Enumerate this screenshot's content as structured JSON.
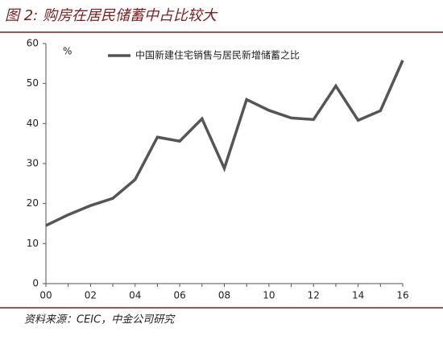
{
  "chart_data": {
    "type": "line",
    "title": "图 2: 购房在居民储蓄中占比较大",
    "unit_label": "%",
    "source": "资料来源：CEIC，中金公司研究",
    "categories": [
      "00",
      null,
      "02",
      null,
      "04",
      null,
      "06",
      null,
      "08",
      null,
      "10",
      null,
      "12",
      null,
      "14",
      null,
      "16"
    ],
    "series": [
      {
        "name": "中国新建住宅销售与居民新增储蓄之比",
        "color": "#555555",
        "values": [
          14.5,
          17.2,
          19.5,
          21.3,
          26,
          36.6,
          35.6,
          41.2,
          28.8,
          46,
          43.3,
          41.4,
          41,
          49.4,
          40.8,
          43.2,
          55.8
        ]
      }
    ],
    "ylim": [
      0,
      60
    ],
    "yticks": [
      0,
      10,
      20,
      30,
      40,
      50,
      60
    ]
  }
}
